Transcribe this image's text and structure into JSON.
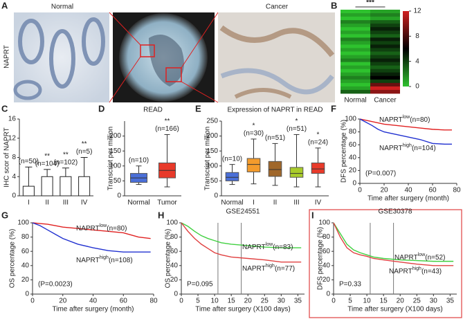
{
  "figure": {
    "panel_a": {
      "letter": "A",
      "left_label": "Normal",
      "right_label": "Cancer",
      "row_label": "NAPRT"
    }
  },
  "chart_data": [
    {
      "panel": "B",
      "type": "heatmap",
      "significance": "***",
      "columns": [
        "Normal",
        "Cancer"
      ],
      "values": [
        [
          0,
          1,
          0,
          2,
          1,
          0,
          1,
          0,
          2,
          1,
          0,
          1,
          0,
          1,
          2,
          0,
          1,
          0,
          1,
          2,
          1,
          0,
          1,
          3
        ],
        [
          1,
          2,
          1,
          3,
          4,
          5,
          4,
          3,
          5,
          4,
          5,
          4,
          3,
          4,
          5,
          4,
          3,
          4,
          5,
          6,
          4,
          9,
          12,
          10
        ]
      ],
      "clim": [
        0,
        12
      ],
      "colorbar_ticks": [
        0,
        4,
        8,
        12
      ]
    },
    {
      "panel": "C",
      "type": "bar",
      "y_label": "IHC scor of NAPRT",
      "categories": [
        "I",
        "II",
        "III",
        "IV"
      ],
      "values": [
        2,
        4,
        4,
        4
      ],
      "errors": [
        4,
        1.5,
        1.8,
        4
      ],
      "labels": [
        "(n=50)",
        "(n=104)",
        "(n=102)",
        "(n=5)"
      ],
      "stars": [
        null,
        "**",
        "**",
        "**"
      ],
      "ylim": [
        0,
        16
      ],
      "yticks": [
        0,
        4,
        8,
        12,
        16
      ],
      "color": "#ffffff"
    },
    {
      "panel": "D",
      "type": "box",
      "title": "READ",
      "y_label": "Transcript per million",
      "categories": [
        "Normal",
        "Tumor"
      ],
      "boxes": [
        {
          "min": 38,
          "q1": 45,
          "median": 60,
          "q3": 75,
          "max": 100
        },
        {
          "min": 30,
          "q1": 60,
          "median": 85,
          "q3": 110,
          "max": 205
        }
      ],
      "colors": [
        "#4a6fd8",
        "#e83a2a"
      ],
      "labels": [
        "(n=10)",
        "(n=166)"
      ],
      "stars": [
        null,
        "**"
      ],
      "ylim": [
        0,
        250
      ],
      "yticks": [
        0,
        50,
        100,
        150,
        200
      ]
    },
    {
      "panel": "E",
      "type": "box",
      "title": "Expression of NAPRT in READ",
      "y_label": "Transcript per million",
      "categories": [
        "Normal",
        "I",
        "II",
        "III",
        "IV"
      ],
      "boxes": [
        {
          "min": 38,
          "q1": 50,
          "median": 62,
          "q3": 78,
          "max": 105
        },
        {
          "min": 40,
          "q1": 80,
          "median": 105,
          "q3": 125,
          "max": 190
        },
        {
          "min": 35,
          "q1": 65,
          "median": 88,
          "q3": 115,
          "max": 175
        },
        {
          "min": 30,
          "q1": 62,
          "median": 75,
          "q3": 95,
          "max": 205
        },
        {
          "min": 30,
          "q1": 75,
          "median": 90,
          "q3": 110,
          "max": 160
        }
      ],
      "colors": [
        "#4a6fd8",
        "#f39b2c",
        "#a0672a",
        "#a9cc2a",
        "#e83a2a"
      ],
      "labels": [
        "(n=10)",
        "(n=30)",
        "(n=51)",
        "(n=51)",
        "(n=24)"
      ],
      "stars": [
        null,
        "*",
        null,
        "*",
        "*"
      ],
      "ylim": [
        0,
        250
      ],
      "yticks": [
        0,
        50,
        100,
        150,
        200,
        250
      ]
    },
    {
      "panel": "F",
      "type": "line",
      "y_label": "DFS percentage (%)",
      "x_label": "Time after surgery (month)",
      "p_value": "(P=0.007)",
      "xlim": [
        0,
        80
      ],
      "xticks": [
        0,
        20,
        40,
        60,
        80
      ],
      "ylim": [
        0,
        100
      ],
      "yticks": [
        0,
        20,
        40,
        60,
        80,
        100
      ],
      "series": [
        {
          "name": "NAPRT",
          "sup": "low",
          "count": "(n=80)",
          "color": "#e02020",
          "x": [
            0,
            5,
            10,
            15,
            20,
            30,
            40,
            50,
            60,
            70,
            76
          ],
          "values": [
            100,
            98,
            96,
            94,
            92,
            90,
            88,
            86,
            84,
            83,
            83
          ]
        },
        {
          "name": "NAPRT",
          "sup": "high",
          "count": "(n=104)",
          "color": "#2030d0",
          "x": [
            0,
            5,
            10,
            15,
            20,
            30,
            40,
            50,
            60,
            70,
            76
          ],
          "values": [
            100,
            95,
            90,
            84,
            80,
            76,
            72,
            68,
            62,
            61,
            61
          ]
        }
      ]
    },
    {
      "panel": "G",
      "type": "line",
      "y_label": "OS percentage (%)",
      "x_label": "Time after surgery (month)",
      "p_value": "(P=0.0023)",
      "xlim": [
        0,
        80
      ],
      "xticks": [
        0,
        20,
        40,
        60,
        80
      ],
      "ylim": [
        0,
        100
      ],
      "yticks": [
        0,
        20,
        40,
        60,
        80,
        100
      ],
      "series": [
        {
          "name": "NAPRT",
          "sup": "low",
          "count": "(n=80)",
          "color": "#e02020",
          "x": [
            0,
            5,
            10,
            15,
            20,
            30,
            40,
            50,
            60,
            70,
            78
          ],
          "values": [
            100,
            99,
            98,
            96,
            94,
            92,
            90,
            88,
            86,
            80,
            78
          ]
        },
        {
          "name": "NAPRT",
          "sup": "high",
          "count": "(n=108)",
          "color": "#2030d0",
          "x": [
            0,
            5,
            10,
            15,
            20,
            30,
            40,
            50,
            60,
            70,
            78
          ],
          "values": [
            100,
            96,
            90,
            84,
            78,
            70,
            65,
            61,
            59,
            59,
            59
          ]
        }
      ]
    },
    {
      "panel": "H",
      "type": "line",
      "title": "GSE24551",
      "y_label": "OS percentage (%)",
      "x_label": "Time after surgery (X100 days)",
      "p_value": "P=0.095",
      "xlim": [
        0,
        37
      ],
      "xticks": [
        0,
        5,
        10,
        15,
        20,
        25,
        30,
        35
      ],
      "ylim": [
        0,
        100
      ],
      "yticks": [
        0,
        20,
        40,
        60,
        80,
        100
      ],
      "vlines": [
        11,
        18
      ],
      "series": [
        {
          "name": "NAPRT",
          "sup": "low",
          "count": "(n=83)",
          "color": "#40d040",
          "x": [
            0,
            2,
            4,
            6,
            8,
            10,
            12,
            15,
            20,
            25,
            30,
            36
          ],
          "values": [
            100,
            95,
            88,
            82,
            78,
            75,
            72,
            70,
            68,
            66,
            65,
            65
          ]
        },
        {
          "name": "NAPRT",
          "sup": "high",
          "count": "(n=77)",
          "color": "#e04040",
          "x": [
            0,
            2,
            4,
            6,
            8,
            10,
            12,
            15,
            20,
            25,
            30,
            36
          ],
          "values": [
            100,
            88,
            78,
            70,
            64,
            58,
            55,
            52,
            50,
            48,
            45,
            45
          ]
        }
      ]
    },
    {
      "panel": "I",
      "type": "line",
      "title": "GSE30378",
      "y_label": "DFS percentage (%)",
      "x_label": "Time after surgery (X100 days)",
      "p_value": "P=0.33",
      "xlim": [
        0,
        37
      ],
      "xticks": [
        0,
        5,
        10,
        15,
        20,
        25,
        30,
        35
      ],
      "ylim": [
        0,
        100
      ],
      "yticks": [
        0,
        20,
        40,
        60,
        80,
        100
      ],
      "vlines": [
        11,
        18
      ],
      "series": [
        {
          "name": "NAPRT",
          "sup": "low",
          "count": "(n=52)",
          "color": "#40d040",
          "x": [
            0,
            2,
            4,
            6,
            8,
            10,
            12,
            15,
            20,
            25,
            30,
            36
          ],
          "values": [
            100,
            85,
            70,
            62,
            58,
            55,
            52,
            50,
            48,
            47,
            46,
            46
          ]
        },
        {
          "name": "NAPRT",
          "sup": "high",
          "count": "(n=43)",
          "color": "#e04040",
          "x": [
            0,
            2,
            4,
            6,
            8,
            10,
            12,
            15,
            20,
            25,
            30,
            36
          ],
          "values": [
            100,
            80,
            65,
            58,
            55,
            53,
            50,
            48,
            45,
            42,
            40,
            40
          ]
        }
      ]
    }
  ]
}
